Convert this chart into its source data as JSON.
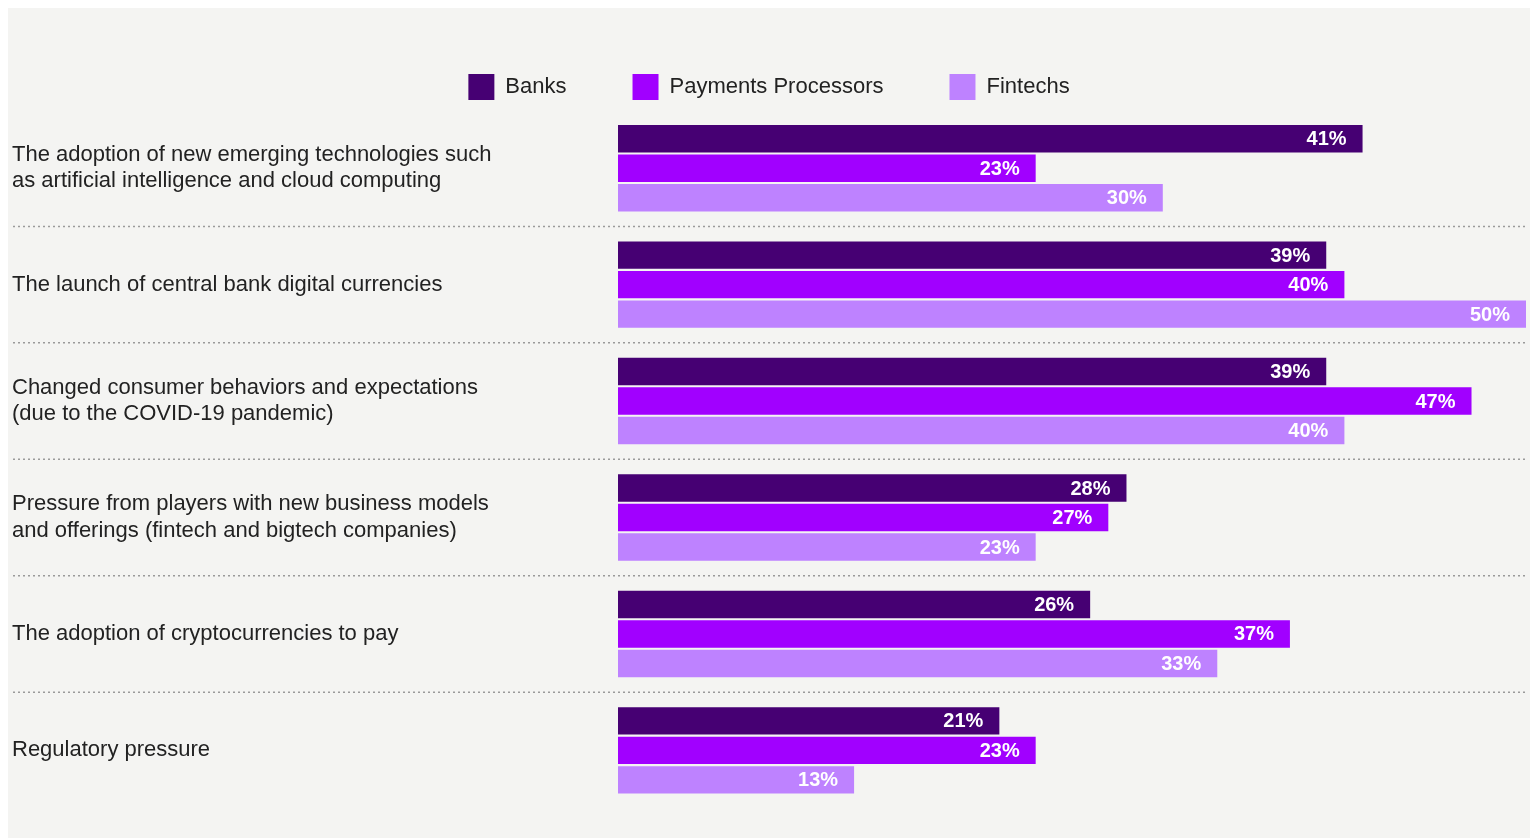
{
  "chart_data": {
    "type": "bar",
    "orientation": "horizontal",
    "categories": [
      "The adoption of new emerging technologies such as artificial intelligence and cloud computing",
      "The launch of central bank digital currencies",
      "Changed consumer behaviors and expectations (due to the COVID-19 pandemic)",
      "Pressure from players with new business models and offerings (fintech and bigtech companies)",
      "The adoption of cryptocurrencies to pay",
      "Regulatory pressure"
    ],
    "series": [
      {
        "name": "Banks",
        "color": "#460073",
        "values": [
          41,
          39,
          39,
          28,
          26,
          21
        ],
        "value_labels": [
          "41%",
          "39%",
          "39%",
          "28%",
          "26%",
          "21%"
        ]
      },
      {
        "name": "Payments Processors",
        "color": "#a100ff",
        "values": [
          23,
          40,
          47,
          27,
          37,
          23
        ],
        "value_labels": [
          "23%",
          "40%",
          "47%",
          "27%",
          "37%",
          "23%"
        ]
      },
      {
        "name": "Fintechs",
        "color": "#be82ff",
        "values": [
          30,
          50,
          40,
          23,
          33,
          13
        ],
        "value_labels": [
          "30%",
          "50%",
          "40%",
          "23%",
          "33%",
          "13%"
        ]
      }
    ],
    "grid": "y",
    "legend": "top"
  }
}
